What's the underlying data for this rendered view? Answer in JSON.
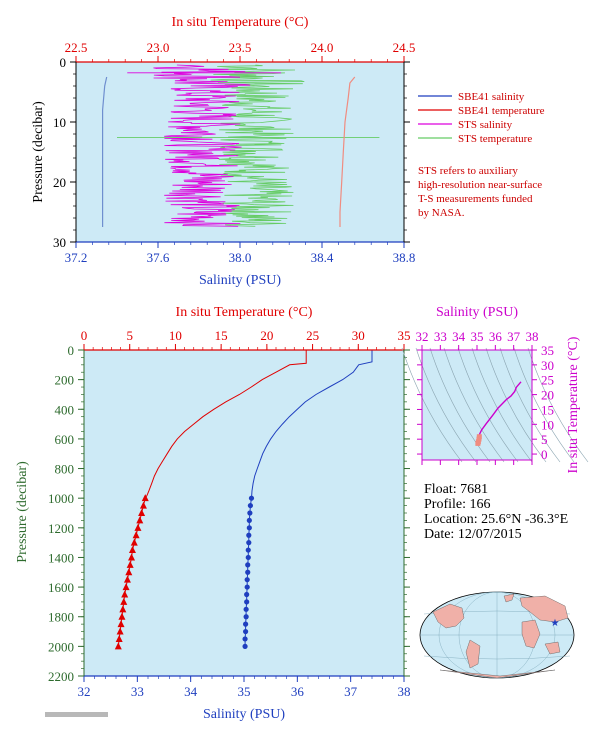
{
  "colors": {
    "salinity": "#1f3fbf",
    "temperature": "#e00000",
    "sts_salinity": "#dd00dd",
    "sts_temperature": "#66cc66",
    "plot_bg": "#cdeaf6",
    "pressure_label": "#2e6b2e",
    "ts_accent": "#cc00cc",
    "ts_bg": "#cdeaf6"
  },
  "info": {
    "float": "Float:  7681",
    "profile": "Profile:  166",
    "location": "Location:  25.6°N  -36.3°E",
    "date": "Date:  12/07/2015"
  },
  "legend": {
    "items": [
      {
        "label": "SBE41 salinity",
        "color": "#1f3fbf"
      },
      {
        "label": "SBE41 temperature",
        "color": "#e00000"
      },
      {
        "label": "STS salinity",
        "color": "#dd00dd"
      },
      {
        "label": "STS temperature",
        "color": "#66cc66"
      }
    ],
    "note": [
      "STS refers to auxiliary",
      "high-resolution near-surface",
      "T-S measurements funded",
      "by NASA."
    ]
  },
  "chart_data": [
    {
      "type": "line",
      "id": "near-surface",
      "title": "",
      "top_axis_label": "In situ Temperature (°C)",
      "bottom_axis_label": "Salinity (PSU)",
      "left_axis_label": "Pressure (decibar)",
      "temperature_ticks": [
        "22.5",
        "23.0",
        "23.5",
        "24.0",
        "24.5"
      ],
      "temperature_range": [
        22.5,
        24.5
      ],
      "salinity_ticks": [
        "37.2",
        "37.6",
        "38.0",
        "38.4",
        "38.8"
      ],
      "salinity_range": [
        37.2,
        38.8
      ],
      "pressure_ticks": [
        "0",
        "10",
        "20",
        "30"
      ],
      "pressure_range": [
        0,
        30
      ],
      "series": [
        {
          "name": "SBE41 salinity",
          "axis": "salinity",
          "points": [
            [
              37.35,
              2.5
            ],
            [
              37.34,
              4
            ],
            [
              37.33,
              8
            ],
            [
              37.33,
              14
            ],
            [
              37.33,
              20
            ],
            [
              37.33,
              27.5
            ]
          ]
        },
        {
          "name": "SBE41 temperature",
          "axis": "temperature",
          "points": [
            [
              24.2,
              2.5
            ],
            [
              24.17,
              3.5
            ],
            [
              24.16,
              6
            ],
            [
              24.14,
              10
            ],
            [
              24.13,
              15
            ],
            [
              24.12,
              20
            ],
            [
              24.11,
              25
            ],
            [
              24.11,
              27.5
            ]
          ]
        },
        {
          "name": "STS salinity",
          "axis": "salinity",
          "center": 37.82,
          "spread": 0.19,
          "pmin": 0.5,
          "pmax": 27.5
        },
        {
          "name": "STS temperature",
          "axis": "temperature",
          "center": 23.6,
          "spread": 0.23,
          "pmin": 0.5,
          "pmax": 27.5
        }
      ]
    },
    {
      "type": "line",
      "id": "full-profile",
      "title": "",
      "top_axis_label": "In situ Temperature (°C)",
      "bottom_axis_label": "Salinity (PSU)",
      "left_axis_label": "Pressure (decibar)",
      "temperature_ticks": [
        "0",
        "5",
        "10",
        "15",
        "20",
        "25",
        "30",
        "35"
      ],
      "temperature_range": [
        0,
        35
      ],
      "salinity_ticks": [
        "32",
        "33",
        "34",
        "35",
        "36",
        "37",
        "38"
      ],
      "salinity_range": [
        32,
        38
      ],
      "pressure_ticks": [
        "0",
        "200",
        "400",
        "600",
        "800",
        "1000",
        "1200",
        "1400",
        "1600",
        "1800",
        "2000",
        "2200"
      ],
      "pressure_range": [
        0,
        2200
      ],
      "series": [
        {
          "name": "Temperature",
          "axis": "temperature",
          "points": [
            [
              24.3,
              0
            ],
            [
              24.3,
              90
            ],
            [
              22.5,
              100
            ],
            [
              21,
              150
            ],
            [
              19.5,
              200
            ],
            [
              18.3,
              250
            ],
            [
              17,
              300
            ],
            [
              15.5,
              350
            ],
            [
              14.2,
              400
            ],
            [
              13,
              450
            ],
            [
              12,
              500
            ],
            [
              11,
              550
            ],
            [
              10.2,
              600
            ],
            [
              9.6,
              650
            ],
            [
              9.1,
              700
            ],
            [
              8.6,
              750
            ],
            [
              8.1,
              800
            ],
            [
              7.7,
              850
            ],
            [
              7.4,
              900
            ],
            [
              7.1,
              950
            ],
            [
              6.9,
              980
            ],
            [
              6.7,
              1000
            ]
          ]
        },
        {
          "name": "Salinity",
          "axis": "salinity",
          "points": [
            [
              37.4,
              0
            ],
            [
              37.4,
              80
            ],
            [
              37.15,
              100
            ],
            [
              37.05,
              150
            ],
            [
              36.85,
              200
            ],
            [
              36.6,
              250
            ],
            [
              36.35,
              300
            ],
            [
              36.15,
              350
            ],
            [
              36,
              400
            ],
            [
              35.85,
              450
            ],
            [
              35.72,
              500
            ],
            [
              35.6,
              550
            ],
            [
              35.5,
              600
            ],
            [
              35.42,
              650
            ],
            [
              35.35,
              700
            ],
            [
              35.3,
              750
            ],
            [
              35.25,
              800
            ],
            [
              35.2,
              850
            ],
            [
              35.17,
              900
            ],
            [
              35.15,
              950
            ],
            [
              35.14,
              1000
            ]
          ]
        },
        {
          "name": "Temperature samples",
          "axis": "temperature",
          "marker": "triangle",
          "points": [
            [
              6.7,
              1000
            ],
            [
              6.5,
              1050
            ],
            [
              6.3,
              1100
            ],
            [
              6.1,
              1150
            ],
            [
              5.9,
              1200
            ],
            [
              5.7,
              1250
            ],
            [
              5.5,
              1300
            ],
            [
              5.3,
              1350
            ],
            [
              5.2,
              1400
            ],
            [
              5.05,
              1450
            ],
            [
              4.9,
              1500
            ],
            [
              4.75,
              1550
            ],
            [
              4.6,
              1600
            ],
            [
              4.45,
              1650
            ],
            [
              4.35,
              1700
            ],
            [
              4.25,
              1750
            ],
            [
              4.15,
              1800
            ],
            [
              4.05,
              1850
            ],
            [
              3.95,
              1900
            ],
            [
              3.85,
              1950
            ],
            [
              3.75,
              2000
            ]
          ]
        },
        {
          "name": "Salinity samples",
          "axis": "salinity",
          "marker": "circle",
          "points": [
            [
              35.14,
              1000
            ],
            [
              35.12,
              1050
            ],
            [
              35.11,
              1100
            ],
            [
              35.1,
              1150
            ],
            [
              35.1,
              1200
            ],
            [
              35.09,
              1250
            ],
            [
              35.09,
              1300
            ],
            [
              35.08,
              1350
            ],
            [
              35.08,
              1400
            ],
            [
              35.07,
              1450
            ],
            [
              35.07,
              1500
            ],
            [
              35.06,
              1550
            ],
            [
              35.06,
              1600
            ],
            [
              35.05,
              1650
            ],
            [
              35.05,
              1700
            ],
            [
              35.04,
              1750
            ],
            [
              35.04,
              1800
            ],
            [
              35.03,
              1850
            ],
            [
              35.03,
              1900
            ],
            [
              35.02,
              1950
            ],
            [
              35.02,
              2000
            ]
          ]
        }
      ]
    },
    {
      "type": "scatter",
      "id": "ts-diagram",
      "title": "",
      "top_axis_label": "Salinity (PSU)",
      "right_axis_label": "In situ Temperature (°C)",
      "salinity_ticks": [
        "32",
        "33",
        "34",
        "35",
        "36",
        "37",
        "38"
      ],
      "salinity_range": [
        32,
        38
      ],
      "temperature_ticks": [
        "0",
        "5",
        "10",
        "15",
        "20",
        "25",
        "30",
        "35"
      ],
      "temperature_range": [
        -2,
        35
      ],
      "points": [
        [
          35.02,
          3.75
        ],
        [
          35.05,
          4.3
        ],
        [
          35.08,
          5.2
        ],
        [
          35.1,
          6.0
        ],
        [
          35.14,
          6.7
        ],
        [
          35.25,
          8.1
        ],
        [
          35.5,
          10.2
        ],
        [
          35.85,
          13
        ],
        [
          36.15,
          15.5
        ],
        [
          36.6,
          18.3
        ],
        [
          36.85,
          19.5
        ],
        [
          37.05,
          21
        ],
        [
          37.15,
          22.5
        ],
        [
          37.4,
          24.3
        ]
      ]
    }
  ],
  "map": {
    "marker_lat": 25.6,
    "marker_lon": -36.3
  }
}
